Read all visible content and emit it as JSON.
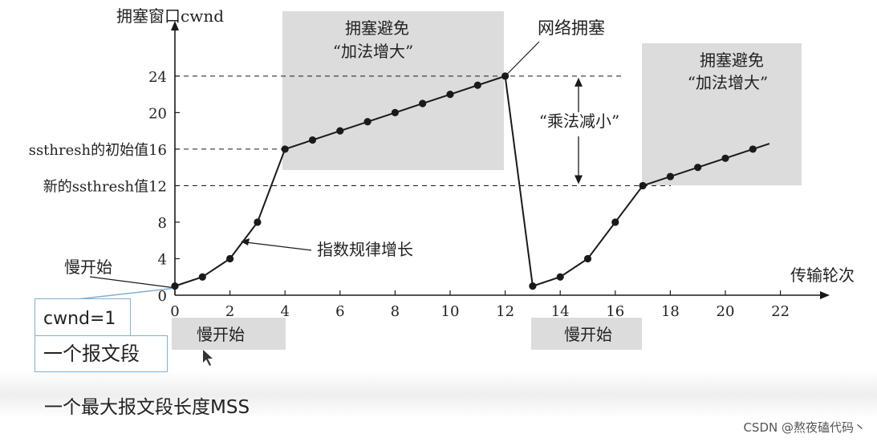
{
  "chart_data": {
    "type": "line",
    "title": "",
    "xlabel": "传输轮次",
    "ylabel": "拥塞窗口cwnd",
    "xlim": [
      0,
      22
    ],
    "ylim": [
      0,
      28
    ],
    "x_ticks": [
      0,
      2,
      4,
      6,
      8,
      10,
      12,
      14,
      16,
      18,
      20,
      22
    ],
    "y_ticks": [
      0,
      4,
      8,
      12,
      16,
      20,
      24
    ],
    "y_special_labels": [
      {
        "value": 16,
        "label": "ssthresh的初始值16"
      },
      {
        "value": 12,
        "label": "新的ssthresh值12"
      }
    ],
    "x": [
      0,
      1,
      2,
      3,
      4,
      5,
      6,
      7,
      8,
      9,
      10,
      11,
      12,
      13,
      14,
      15,
      16,
      17,
      18,
      19,
      20,
      21
    ],
    "values": [
      1,
      2,
      4,
      8,
      16,
      17,
      18,
      19,
      20,
      21,
      22,
      23,
      24,
      1,
      2,
      4,
      8,
      12,
      13,
      14,
      15,
      16
    ],
    "line_end": {
      "x": 21.6,
      "y": 16.6
    },
    "regions": [
      {
        "label": "拥塞避免\n“加法增大”",
        "x_from": 4,
        "x_to": 12
      },
      {
        "label": "拥塞避免\n“加法增大”",
        "x_from": 17,
        "x_to": 22
      },
      {
        "label": "慢开始",
        "x_from": 0,
        "x_to": 4
      },
      {
        "label": "慢开始",
        "x_from": 13,
        "x_to": 17
      }
    ],
    "annotations": [
      {
        "text": "网络拥塞",
        "x": 12,
        "y": 24
      },
      {
        "text": "指数规律增长",
        "x": 2.5,
        "y": 6
      },
      {
        "text": "“乘法减小”",
        "x": 14.5,
        "y": 18
      },
      {
        "text": "慢开始",
        "x": 0,
        "y": 1
      }
    ],
    "grid": false
  },
  "callouts": {
    "cwnd_box": "cwnd=1",
    "segment_box": "一个报文段",
    "mss_note": "一个最大报文段长度MSS"
  },
  "watermark": "CSDN @熬夜磕代码丶",
  "colors": {
    "line": "#1a1a1a",
    "region": "#dcdcdc",
    "callout_border": "#7fb0d6"
  }
}
